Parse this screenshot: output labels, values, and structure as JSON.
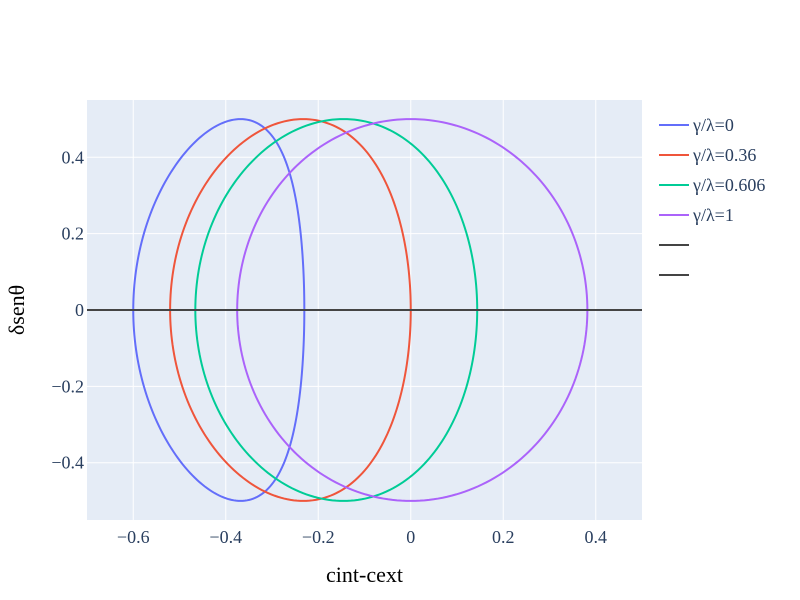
{
  "chart_data": {
    "type": "line",
    "title": "",
    "xlabel": "cint-cext",
    "ylabel": "δsenθ",
    "xlim": [
      -0.7,
      0.5
    ],
    "ylim": [
      -0.55,
      0.55
    ],
    "x_ticks": [
      -0.6,
      -0.4,
      -0.2,
      0,
      0.2,
      0.4
    ],
    "x_tick_labels": [
      "−0.6",
      "−0.4",
      "−0.2",
      "0",
      "0.2",
      "0.4"
    ],
    "y_ticks": [
      -0.4,
      -0.2,
      0,
      0.2,
      0.4
    ],
    "y_tick_labels": [
      "−0.4",
      "−0.2",
      "0",
      "0.2",
      "0.4"
    ],
    "grid": true,
    "legend_position": "right",
    "background": "#e5ecf6",
    "series": [
      {
        "name": "γ/λ=0",
        "color": "#636efa",
        "x_left": -0.6,
        "x_right": -0.2301,
        "x_top": -0.3679,
        "y_amplitude": 0.5
      },
      {
        "name": "γ/λ=0.36",
        "color": "#ef553b",
        "x_left": -0.5203,
        "x_right": 0.0,
        "x_top": -0.2324,
        "y_amplitude": 0.5
      },
      {
        "name": "γ/λ=0.606",
        "color": "#00cc96",
        "x_left": -0.4658,
        "x_right": 0.1437,
        "x_top": -0.1455,
        "y_amplitude": 0.5
      },
      {
        "name": "γ/λ=1",
        "color": "#ab63fa",
        "x_left": -0.3753,
        "x_right": 0.3819,
        "x_top": 0.0,
        "y_amplitude": 0.5
      },
      {
        "name": "",
        "color": "#444444",
        "x": [
          -0.7,
          0.5
        ],
        "y": [
          0,
          0
        ]
      },
      {
        "name": "",
        "color": "#444444",
        "x": [],
        "y": []
      }
    ]
  }
}
